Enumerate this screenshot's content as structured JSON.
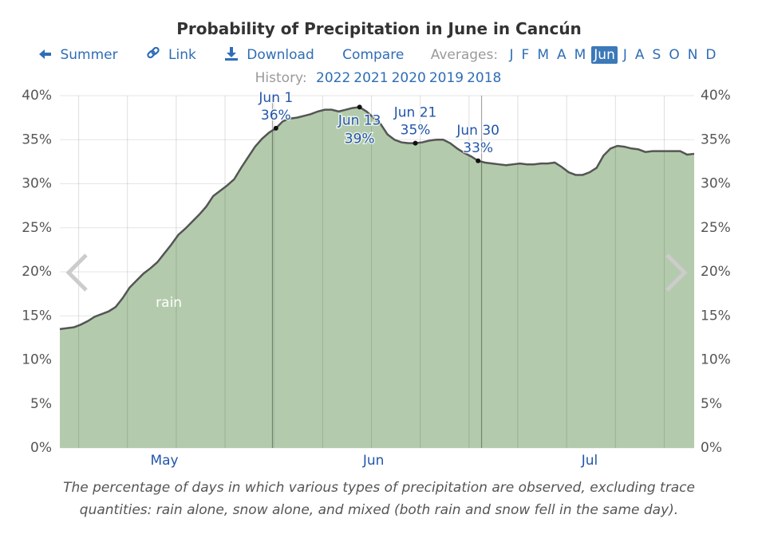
{
  "header": {
    "title": "Probability of Precipitation in June in Cancún",
    "links": [
      "Summer",
      "Link",
      "Download",
      "Compare"
    ],
    "averages_label": "Averages:",
    "months": [
      "J",
      "F",
      "M",
      "A",
      "M",
      "Jun",
      "J",
      "A",
      "S",
      "O",
      "N",
      "D"
    ],
    "active_month": 5,
    "history_label": "History:",
    "years": [
      "2022",
      "2021",
      "2020",
      "2019",
      "2018"
    ]
  },
  "chart_data": {
    "type": "area",
    "categories": [
      null,
      null,
      null,
      null,
      null,
      null,
      null,
      null,
      null,
      null,
      null,
      null,
      null,
      null,
      null,
      "May",
      null,
      null,
      null,
      null,
      null,
      null,
      null,
      null,
      null,
      null,
      null,
      null,
      null,
      null,
      null,
      null,
      null,
      null,
      null,
      null,
      null,
      null,
      null,
      null,
      null,
      null,
      null,
      null,
      null,
      "Jun",
      null,
      null,
      null,
      null,
      null,
      null,
      null,
      null,
      null,
      null,
      null,
      null,
      null,
      null,
      null,
      null,
      null,
      null,
      null,
      null,
      null,
      null,
      null,
      null,
      null,
      null,
      null,
      null,
      null,
      null,
      "Jul",
      null,
      null,
      null,
      null,
      null,
      null,
      null,
      null,
      null,
      null,
      null,
      null,
      null,
      null,
      null
    ],
    "series": [
      {
        "name": "rain",
        "color": "#b3cbac",
        "line_color": "#555555",
        "values": [
          13.5,
          13.6,
          13.7,
          14.0,
          14.4,
          14.9,
          15.2,
          15.5,
          16.0,
          17.0,
          18.2,
          19.0,
          19.8,
          20.4,
          21.1,
          22.1,
          23.1,
          24.2,
          24.9,
          25.7,
          26.5,
          27.4,
          28.6,
          29.2,
          29.8,
          30.5,
          31.8,
          33.0,
          34.2,
          35.1,
          35.8,
          36.3,
          37.1,
          37.4,
          37.5,
          37.7,
          37.9,
          38.2,
          38.4,
          38.4,
          38.2,
          38.4,
          38.6,
          38.7,
          38.2,
          37.5,
          36.8,
          35.6,
          35.0,
          34.7,
          34.6,
          34.6,
          34.7,
          34.9,
          35.0,
          35.0,
          34.6,
          34.0,
          33.5,
          33.1,
          32.6,
          32.4,
          32.3,
          32.2,
          32.1,
          32.2,
          32.3,
          32.2,
          32.2,
          32.3,
          32.3,
          32.4,
          31.9,
          31.3,
          31.0,
          31.0,
          31.3,
          31.8,
          33.2,
          34.0,
          34.3,
          34.2,
          34.0,
          33.9,
          33.6,
          33.7,
          33.7,
          33.7,
          33.7,
          33.7,
          33.3,
          33.4
        ],
        "value_labels": [
          null,
          null,
          null,
          null,
          null,
          null,
          null,
          null,
          null,
          null,
          null,
          null,
          null,
          null,
          null,
          null,
          null,
          null,
          null,
          null,
          null,
          null,
          null,
          null,
          null,
          null,
          null,
          null,
          null,
          null,
          null,
          "36%",
          null,
          null,
          null,
          null,
          null,
          null,
          null,
          null,
          null,
          null,
          null,
          "39%",
          null,
          null,
          null,
          null,
          null,
          null,
          null,
          "35%",
          null,
          null,
          null,
          null,
          null,
          null,
          null,
          null,
          "33%",
          null,
          null,
          null,
          null,
          null,
          null,
          null,
          null,
          null,
          null,
          null,
          null,
          null,
          null,
          null,
          null,
          null,
          null,
          null,
          null,
          null,
          null,
          null,
          null,
          null,
          null,
          null,
          null,
          null,
          null,
          null
        ],
        "point_labels": [
          null,
          null,
          null,
          null,
          null,
          null,
          null,
          null,
          null,
          null,
          null,
          null,
          null,
          null,
          null,
          null,
          null,
          null,
          null,
          null,
          null,
          null,
          null,
          null,
          null,
          null,
          null,
          null,
          null,
          null,
          null,
          "Jun 1",
          null,
          null,
          null,
          null,
          null,
          null,
          null,
          null,
          null,
          null,
          null,
          "Jun 13",
          null,
          null,
          null,
          null,
          null,
          null,
          null,
          "Jun 21",
          null,
          null,
          null,
          null,
          null,
          null,
          null,
          null,
          "Jun 30",
          null,
          null,
          null,
          null,
          null,
          null,
          null,
          null,
          null,
          null,
          null,
          null,
          null,
          null,
          null,
          null,
          null,
          null,
          null,
          null,
          null,
          null,
          null,
          null,
          null,
          null,
          null,
          null,
          null,
          null,
          null
        ]
      }
    ],
    "ylim": [
      0,
      40
    ],
    "yticks": [
      {
        "value": 0,
        "label": "0%"
      },
      {
        "value": 5,
        "label": "5%"
      },
      {
        "value": 10,
        "label": "10%"
      },
      {
        "value": 15,
        "label": "15%"
      },
      {
        "value": 20,
        "label": "20%"
      },
      {
        "value": 25,
        "label": "25%"
      },
      {
        "value": 30,
        "label": "30%"
      },
      {
        "value": 35,
        "label": "35%"
      },
      {
        "value": 40,
        "label": "40%"
      }
    ],
    "grid": true,
    "caption": "The percentage of days in which various types of precipitation are observed, excluding trace quantities: rain alone, snow alone, and mixed (both rain and snow fell in the same day)."
  }
}
